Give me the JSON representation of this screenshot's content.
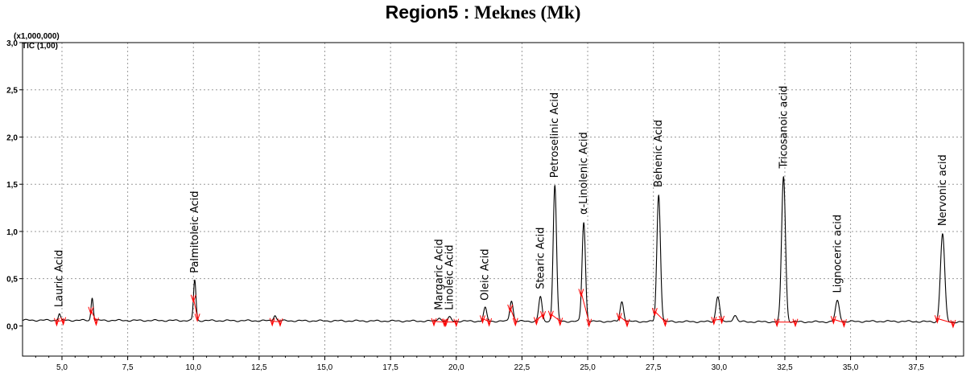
{
  "title": {
    "region": "Region5 :",
    "place": "Meknes (Mk)"
  },
  "chart_data": {
    "type": "line",
    "xlabel": "",
    "ylabel": "",
    "multiplier_label": "(x1,000,000)",
    "trace_label": "TIC (1,00)",
    "xlim": [
      3.5,
      39.3
    ],
    "ylim": [
      -0.32,
      3.0
    ],
    "x_ticks": [
      "5,0",
      "7,5",
      "10,0",
      "12,5",
      "15,0",
      "17,5",
      "20,0",
      "22,5",
      "25,0",
      "27,5",
      "30,0",
      "32,5",
      "35,0",
      "37,5"
    ],
    "y_ticks": [
      "0,0",
      "0,5",
      "1,0",
      "1,5",
      "2,0",
      "2,5",
      "3,0"
    ],
    "grid": true,
    "baseline": 0.06,
    "peaks": [
      {
        "name": "Lauric Acid",
        "rt": 4.9,
        "height": 0.13
      },
      {
        "name": "",
        "rt": 6.15,
        "height": 0.3
      },
      {
        "name": "Palmitoleic Acid",
        "rt": 10.05,
        "height": 0.49
      },
      {
        "name": "",
        "rt": 13.1,
        "height": 0.12
      },
      {
        "name": "Margaric Acid",
        "rt": 19.35,
        "height": 0.1
      },
      {
        "name": "Linoleic Acid",
        "rt": 19.75,
        "height": 0.1
      },
      {
        "name": "Oleic Acid",
        "rt": 21.1,
        "height": 0.2
      },
      {
        "name": "",
        "rt": 22.1,
        "height": 0.28
      },
      {
        "name": "Stearic Acid",
        "rt": 23.2,
        "height": 0.32
      },
      {
        "name": "Petroselinic Acid",
        "rt": 23.75,
        "height": 1.5
      },
      {
        "name": "α-Linolenic Acid",
        "rt": 24.85,
        "height": 1.11
      },
      {
        "name": "",
        "rt": 26.3,
        "height": 0.27
      },
      {
        "name": "Behenic Acid",
        "rt": 27.7,
        "height": 1.4
      },
      {
        "name": "",
        "rt": 29.95,
        "height": 0.33
      },
      {
        "name": "",
        "rt": 30.6,
        "height": 0.13
      },
      {
        "name": "Tricosanoic acid",
        "rt": 32.45,
        "height": 1.6
      },
      {
        "name": "Lignoceric acid",
        "rt": 34.5,
        "height": 0.28
      },
      {
        "name": "Nervonic acid",
        "rt": 38.5,
        "height": 0.99
      }
    ],
    "integration_marks": [
      4.8,
      5.05,
      6.1,
      6.3,
      10.0,
      10.15,
      13.0,
      13.3,
      19.15,
      19.55,
      19.6,
      20.0,
      21.0,
      21.25,
      22.05,
      22.25,
      23.05,
      23.3,
      23.6,
      23.95,
      24.75,
      25.05,
      26.2,
      26.5,
      27.55,
      27.95,
      29.8,
      30.1,
      32.2,
      32.9,
      34.35,
      34.75,
      38.3,
      38.9
    ],
    "colors": {
      "trace": "#000000",
      "grid": "#9a9a9a",
      "integration": "#ff0000",
      "axis": "#000000"
    }
  }
}
